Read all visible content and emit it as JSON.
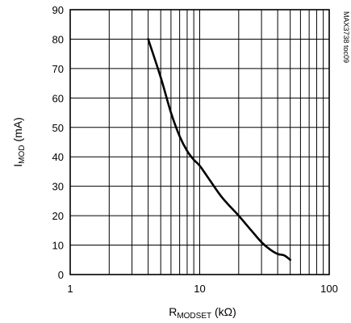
{
  "chart_data": {
    "type": "line",
    "x_scale": "log",
    "y_scale": "linear",
    "xlim": [
      1,
      100
    ],
    "ylim": [
      0,
      90
    ],
    "x_ticks": [
      1,
      10,
      100
    ],
    "y_ticks": [
      0,
      10,
      20,
      30,
      40,
      50,
      60,
      70,
      80,
      90
    ],
    "grid": true,
    "xlabel": {
      "main": "R",
      "sub": "MODSET",
      "unit": " (kΩ)"
    },
    "ylabel": {
      "main": "I",
      "sub": "MOD",
      "unit": " (mA)"
    },
    "annotation": "MAX3738 toc09",
    "series": [
      {
        "x": [
          4,
          5,
          6,
          7,
          8,
          9,
          10,
          12,
          15,
          20,
          25,
          30,
          35,
          40,
          45,
          50
        ],
        "y": [
          80,
          67,
          55,
          47,
          42,
          39,
          37,
          32,
          26,
          20,
          15,
          11,
          8.5,
          7,
          6.5,
          5
        ]
      }
    ]
  }
}
